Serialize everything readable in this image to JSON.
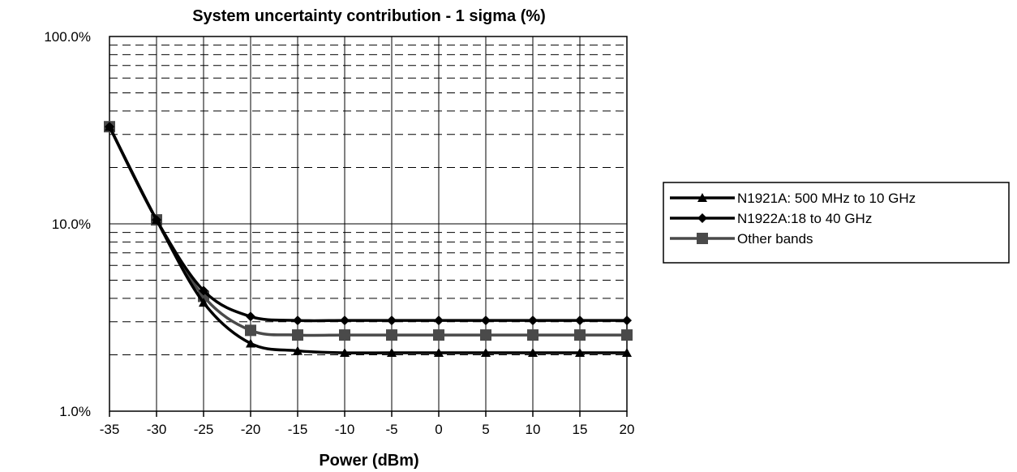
{
  "chart_data": {
    "type": "line",
    "title": "System uncertainty contribution - 1 sigma (%)",
    "xlabel": "Power (dBm)",
    "ylabel": "",
    "x": [
      -35,
      -30,
      -25,
      -20,
      -15,
      -10,
      -5,
      0,
      5,
      10,
      15,
      20
    ],
    "x_tick_labels": [
      "-35",
      "-30",
      "-25",
      "-20",
      "-15",
      "-10",
      "-5",
      "0",
      "5",
      "10",
      "15",
      "20"
    ],
    "xlim": [
      -35,
      20
    ],
    "y_scale": "log",
    "ylim": [
      1,
      100
    ],
    "y_major_ticks": [
      1,
      10,
      100
    ],
    "y_tick_labels": [
      "1.0%",
      "10.0%",
      "100.0%"
    ],
    "grid": true,
    "legend_position": "right",
    "series": [
      {
        "name": "N1921A: 500 MHz to 10 GHz",
        "marker": "triangle",
        "color": "#000000",
        "values": [
          33,
          10.5,
          3.8,
          2.3,
          2.1,
          2.05,
          2.05,
          2.05,
          2.05,
          2.05,
          2.05,
          2.05
        ]
      },
      {
        "name": "N1922A:18 to 40 GHz",
        "marker": "diamond",
        "color": "#000000",
        "values": [
          33,
          10.5,
          4.4,
          3.2,
          3.05,
          3.05,
          3.05,
          3.05,
          3.05,
          3.05,
          3.05,
          3.05
        ]
      },
      {
        "name": "Other bands",
        "marker": "square",
        "color": "#4a4a4a",
        "values": [
          33,
          10.5,
          4.1,
          2.7,
          2.55,
          2.55,
          2.55,
          2.55,
          2.55,
          2.55,
          2.55,
          2.55
        ]
      }
    ]
  }
}
